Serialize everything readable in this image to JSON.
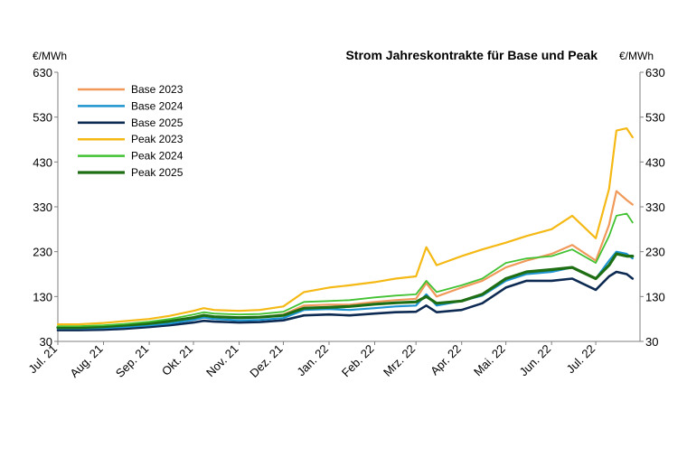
{
  "chart_data": {
    "type": "line",
    "title": "Strom Jahreskontrakte für Base und Peak",
    "ylabel_left": "€/MWh",
    "ylabel_right": "€/MWh",
    "ylim": [
      30,
      630
    ],
    "yticks": [
      30,
      130,
      230,
      330,
      430,
      530,
      630
    ],
    "grid": false,
    "legend_position": "top-left",
    "x_labels": [
      "Jul. 21",
      "Aug. 21",
      "Sep. 21",
      "Okt. 21",
      "Nov. 21",
      "Dez. 21",
      "Jan. 22",
      "Feb. 22",
      "Mrz. 22",
      "Apr. 22",
      "Mai. 22",
      "Jun. 22",
      "Jul. 22"
    ],
    "x": [
      "2021-07-01",
      "2021-07-15",
      "2021-08-01",
      "2021-08-15",
      "2021-09-01",
      "2021-09-15",
      "2021-10-01",
      "2021-10-08",
      "2021-10-15",
      "2021-11-01",
      "2021-11-15",
      "2021-12-01",
      "2021-12-15",
      "2022-01-01",
      "2022-01-15",
      "2022-02-01",
      "2022-02-15",
      "2022-03-01",
      "2022-03-08",
      "2022-03-15",
      "2022-04-01",
      "2022-04-15",
      "2022-05-01",
      "2022-05-15",
      "2022-06-01",
      "2022-06-15",
      "2022-07-01",
      "2022-07-10",
      "2022-07-15",
      "2022-07-22",
      "2022-07-26"
    ],
    "series": [
      {
        "name": "Base 2023",
        "color": "#f0995a",
        "width": 2.2,
        "values": [
          61,
          61,
          63,
          66,
          70,
          76,
          84,
          89,
          85,
          83,
          84,
          90,
          110,
          112,
          112,
          118,
          122,
          125,
          160,
          130,
          150,
          165,
          195,
          210,
          225,
          245,
          210,
          290,
          365,
          345,
          335
        ]
      },
      {
        "name": "Base 2024",
        "color": "#1d93d1",
        "width": 2.2,
        "values": [
          59,
          59,
          60,
          62,
          66,
          70,
          78,
          83,
          80,
          77,
          78,
          82,
          100,
          102,
          100,
          104,
          108,
          110,
          135,
          110,
          120,
          132,
          165,
          180,
          185,
          195,
          170,
          210,
          230,
          225,
          215
        ]
      },
      {
        "name": "Base 2025",
        "color": "#0d2a52",
        "width": 2.6,
        "values": [
          55,
          55,
          56,
          58,
          62,
          66,
          72,
          76,
          74,
          72,
          73,
          77,
          88,
          90,
          88,
          92,
          95,
          96,
          110,
          95,
          100,
          115,
          150,
          165,
          165,
          170,
          145,
          175,
          185,
          180,
          170
        ]
      },
      {
        "name": "Peak 2023",
        "color": "#f5b915",
        "width": 2.2,
        "values": [
          68,
          68,
          71,
          75,
          80,
          87,
          98,
          104,
          100,
          98,
          100,
          108,
          140,
          150,
          155,
          162,
          170,
          175,
          240,
          200,
          220,
          235,
          250,
          265,
          280,
          310,
          260,
          370,
          500,
          505,
          485
        ]
      },
      {
        "name": "Peak 2024",
        "color": "#42c232",
        "width": 1.8,
        "values": [
          64,
          64,
          66,
          69,
          74,
          80,
          90,
          95,
          92,
          90,
          91,
          96,
          118,
          120,
          122,
          128,
          132,
          135,
          165,
          140,
          155,
          170,
          205,
          215,
          220,
          235,
          205,
          265,
          310,
          315,
          295
        ]
      },
      {
        "name": "Peak 2025",
        "color": "#1e6e14",
        "width": 3.2,
        "values": [
          61,
          61,
          63,
          66,
          70,
          75,
          83,
          88,
          85,
          83,
          84,
          88,
          104,
          106,
          108,
          113,
          116,
          118,
          130,
          115,
          120,
          135,
          170,
          185,
          190,
          195,
          170,
          200,
          225,
          220,
          220
        ]
      }
    ]
  }
}
